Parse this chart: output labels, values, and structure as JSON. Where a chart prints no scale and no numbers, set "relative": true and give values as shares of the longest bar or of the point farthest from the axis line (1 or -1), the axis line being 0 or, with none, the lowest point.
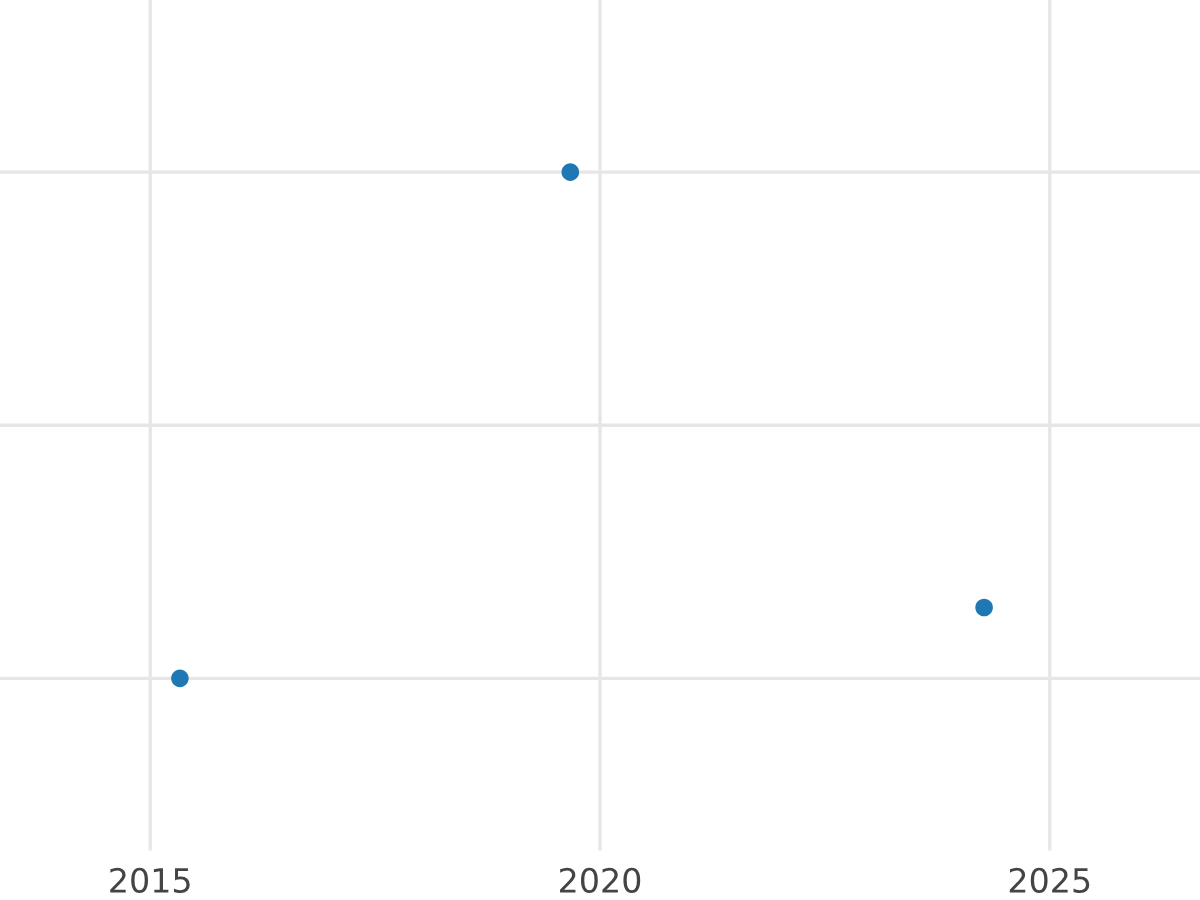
{
  "chart_data": {
    "type": "scatter",
    "x": [
      2015.33,
      2019.67,
      2024.27
    ],
    "values": [
      0,
      1,
      0.14
    ],
    "color": "#1f77b4",
    "relative": true,
    "xlim": [
      2013.33,
      2026.67
    ],
    "xticks": [
      2015,
      2020,
      2025
    ],
    "grid": true,
    "tick_labels": "x",
    "marker": "circle"
  }
}
